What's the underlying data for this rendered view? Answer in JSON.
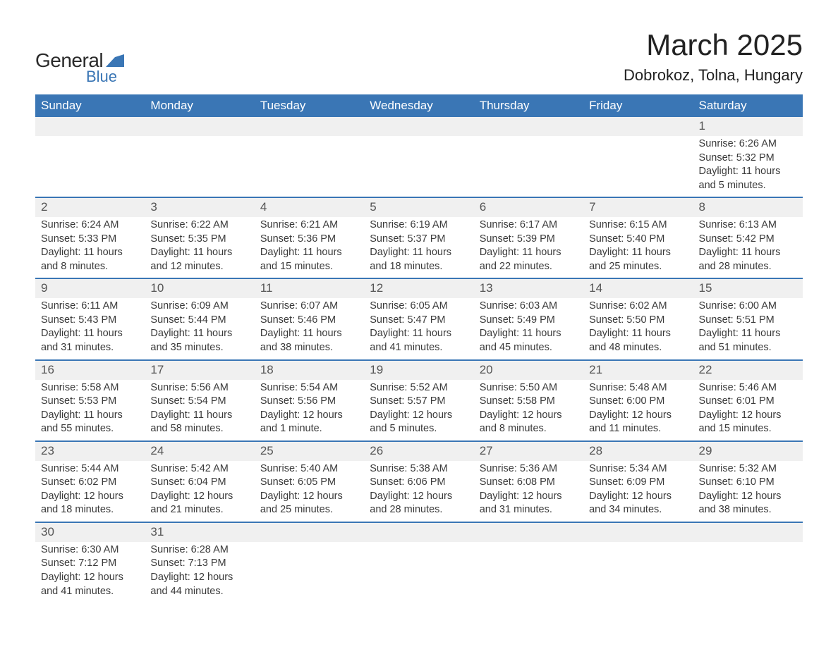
{
  "logo": {
    "text1": "General",
    "text2": "Blue",
    "flag_color": "#3a76b5"
  },
  "title": "March 2025",
  "location": "Dobrokoz, Tolna, Hungary",
  "colors": {
    "header_bg": "#3a76b5",
    "header_text": "#ffffff",
    "row_divider": "#3a76b5",
    "daynum_bg": "#f0f0f0",
    "body_text": "#3a3a3a",
    "page_bg": "#ffffff"
  },
  "typography": {
    "title_fontsize": 42,
    "location_fontsize": 22,
    "weekday_fontsize": 17,
    "daynum_fontsize": 17,
    "cell_fontsize": 14.5
  },
  "weekdays": [
    "Sunday",
    "Monday",
    "Tuesday",
    "Wednesday",
    "Thursday",
    "Friday",
    "Saturday"
  ],
  "weeks": [
    [
      null,
      null,
      null,
      null,
      null,
      null,
      {
        "n": "1",
        "sr": "Sunrise: 6:26 AM",
        "ss": "Sunset: 5:32 PM",
        "d1": "Daylight: 11 hours",
        "d2": "and 5 minutes."
      }
    ],
    [
      {
        "n": "2",
        "sr": "Sunrise: 6:24 AM",
        "ss": "Sunset: 5:33 PM",
        "d1": "Daylight: 11 hours",
        "d2": "and 8 minutes."
      },
      {
        "n": "3",
        "sr": "Sunrise: 6:22 AM",
        "ss": "Sunset: 5:35 PM",
        "d1": "Daylight: 11 hours",
        "d2": "and 12 minutes."
      },
      {
        "n": "4",
        "sr": "Sunrise: 6:21 AM",
        "ss": "Sunset: 5:36 PM",
        "d1": "Daylight: 11 hours",
        "d2": "and 15 minutes."
      },
      {
        "n": "5",
        "sr": "Sunrise: 6:19 AM",
        "ss": "Sunset: 5:37 PM",
        "d1": "Daylight: 11 hours",
        "d2": "and 18 minutes."
      },
      {
        "n": "6",
        "sr": "Sunrise: 6:17 AM",
        "ss": "Sunset: 5:39 PM",
        "d1": "Daylight: 11 hours",
        "d2": "and 22 minutes."
      },
      {
        "n": "7",
        "sr": "Sunrise: 6:15 AM",
        "ss": "Sunset: 5:40 PM",
        "d1": "Daylight: 11 hours",
        "d2": "and 25 minutes."
      },
      {
        "n": "8",
        "sr": "Sunrise: 6:13 AM",
        "ss": "Sunset: 5:42 PM",
        "d1": "Daylight: 11 hours",
        "d2": "and 28 minutes."
      }
    ],
    [
      {
        "n": "9",
        "sr": "Sunrise: 6:11 AM",
        "ss": "Sunset: 5:43 PM",
        "d1": "Daylight: 11 hours",
        "d2": "and 31 minutes."
      },
      {
        "n": "10",
        "sr": "Sunrise: 6:09 AM",
        "ss": "Sunset: 5:44 PM",
        "d1": "Daylight: 11 hours",
        "d2": "and 35 minutes."
      },
      {
        "n": "11",
        "sr": "Sunrise: 6:07 AM",
        "ss": "Sunset: 5:46 PM",
        "d1": "Daylight: 11 hours",
        "d2": "and 38 minutes."
      },
      {
        "n": "12",
        "sr": "Sunrise: 6:05 AM",
        "ss": "Sunset: 5:47 PM",
        "d1": "Daylight: 11 hours",
        "d2": "and 41 minutes."
      },
      {
        "n": "13",
        "sr": "Sunrise: 6:03 AM",
        "ss": "Sunset: 5:49 PM",
        "d1": "Daylight: 11 hours",
        "d2": "and 45 minutes."
      },
      {
        "n": "14",
        "sr": "Sunrise: 6:02 AM",
        "ss": "Sunset: 5:50 PM",
        "d1": "Daylight: 11 hours",
        "d2": "and 48 minutes."
      },
      {
        "n": "15",
        "sr": "Sunrise: 6:00 AM",
        "ss": "Sunset: 5:51 PM",
        "d1": "Daylight: 11 hours",
        "d2": "and 51 minutes."
      }
    ],
    [
      {
        "n": "16",
        "sr": "Sunrise: 5:58 AM",
        "ss": "Sunset: 5:53 PM",
        "d1": "Daylight: 11 hours",
        "d2": "and 55 minutes."
      },
      {
        "n": "17",
        "sr": "Sunrise: 5:56 AM",
        "ss": "Sunset: 5:54 PM",
        "d1": "Daylight: 11 hours",
        "d2": "and 58 minutes."
      },
      {
        "n": "18",
        "sr": "Sunrise: 5:54 AM",
        "ss": "Sunset: 5:56 PM",
        "d1": "Daylight: 12 hours",
        "d2": "and 1 minute."
      },
      {
        "n": "19",
        "sr": "Sunrise: 5:52 AM",
        "ss": "Sunset: 5:57 PM",
        "d1": "Daylight: 12 hours",
        "d2": "and 5 minutes."
      },
      {
        "n": "20",
        "sr": "Sunrise: 5:50 AM",
        "ss": "Sunset: 5:58 PM",
        "d1": "Daylight: 12 hours",
        "d2": "and 8 minutes."
      },
      {
        "n": "21",
        "sr": "Sunrise: 5:48 AM",
        "ss": "Sunset: 6:00 PM",
        "d1": "Daylight: 12 hours",
        "d2": "and 11 minutes."
      },
      {
        "n": "22",
        "sr": "Sunrise: 5:46 AM",
        "ss": "Sunset: 6:01 PM",
        "d1": "Daylight: 12 hours",
        "d2": "and 15 minutes."
      }
    ],
    [
      {
        "n": "23",
        "sr": "Sunrise: 5:44 AM",
        "ss": "Sunset: 6:02 PM",
        "d1": "Daylight: 12 hours",
        "d2": "and 18 minutes."
      },
      {
        "n": "24",
        "sr": "Sunrise: 5:42 AM",
        "ss": "Sunset: 6:04 PM",
        "d1": "Daylight: 12 hours",
        "d2": "and 21 minutes."
      },
      {
        "n": "25",
        "sr": "Sunrise: 5:40 AM",
        "ss": "Sunset: 6:05 PM",
        "d1": "Daylight: 12 hours",
        "d2": "and 25 minutes."
      },
      {
        "n": "26",
        "sr": "Sunrise: 5:38 AM",
        "ss": "Sunset: 6:06 PM",
        "d1": "Daylight: 12 hours",
        "d2": "and 28 minutes."
      },
      {
        "n": "27",
        "sr": "Sunrise: 5:36 AM",
        "ss": "Sunset: 6:08 PM",
        "d1": "Daylight: 12 hours",
        "d2": "and 31 minutes."
      },
      {
        "n": "28",
        "sr": "Sunrise: 5:34 AM",
        "ss": "Sunset: 6:09 PM",
        "d1": "Daylight: 12 hours",
        "d2": "and 34 minutes."
      },
      {
        "n": "29",
        "sr": "Sunrise: 5:32 AM",
        "ss": "Sunset: 6:10 PM",
        "d1": "Daylight: 12 hours",
        "d2": "and 38 minutes."
      }
    ],
    [
      {
        "n": "30",
        "sr": "Sunrise: 6:30 AM",
        "ss": "Sunset: 7:12 PM",
        "d1": "Daylight: 12 hours",
        "d2": "and 41 minutes."
      },
      {
        "n": "31",
        "sr": "Sunrise: 6:28 AM",
        "ss": "Sunset: 7:13 PM",
        "d1": "Daylight: 12 hours",
        "d2": "and 44 minutes."
      },
      null,
      null,
      null,
      null,
      null
    ]
  ]
}
